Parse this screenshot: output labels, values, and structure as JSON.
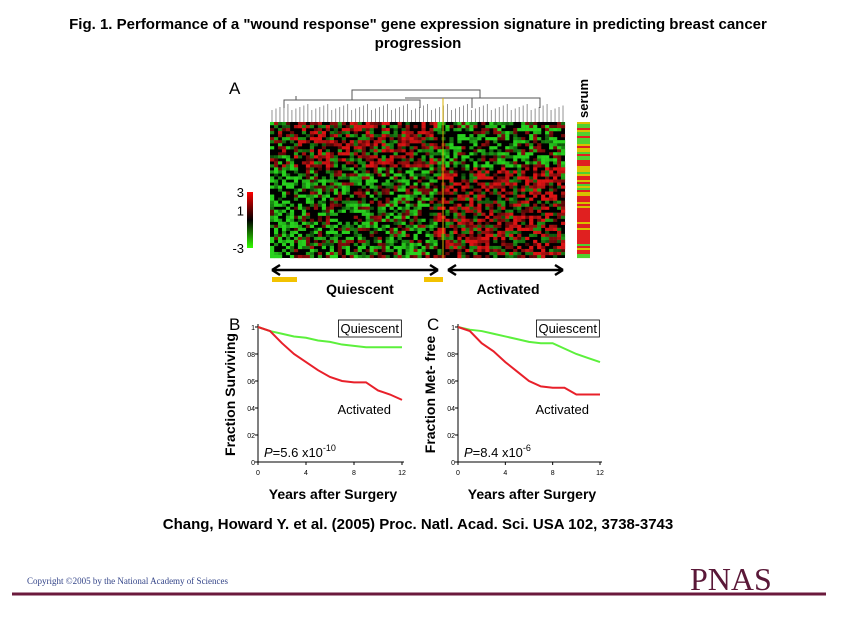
{
  "title": "Fig. 1. Performance of a \"wound response\" gene expression signature in predicting breast cancer progression",
  "panel_a": {
    "label": "A",
    "side_label": "serum",
    "color_scale_ticks": [
      3,
      1,
      -3
    ],
    "group_labels": [
      "Quiescent",
      "Activated"
    ]
  },
  "chart_data": [
    {
      "type": "line",
      "panel_label": "B",
      "ylabel": "Fraction Surviving",
      "xlabel": "Years after Surgery",
      "x": [
        0,
        1,
        2,
        3,
        4,
        5,
        6,
        7,
        8,
        9,
        10,
        11,
        12
      ],
      "series": [
        {
          "name": "Quiescent",
          "color": "#5cf03c",
          "values": [
            1,
            0.97,
            0.95,
            0.93,
            0.92,
            0.9,
            0.89,
            0.87,
            0.86,
            0.85,
            0.85,
            0.85,
            0.85
          ]
        },
        {
          "name": "Activated",
          "color": "#e8202a",
          "values": [
            1,
            0.97,
            0.88,
            0.8,
            0.74,
            0.68,
            0.63,
            0.6,
            0.59,
            0.59,
            0.53,
            0.5,
            0.46
          ]
        }
      ],
      "xlim": [
        0,
        12
      ],
      "ylim": [
        0,
        1
      ],
      "xticks": [
        0,
        4,
        8,
        12
      ],
      "yticks": [
        0,
        {
          "value": 0.2,
          "label": "02"
        },
        {
          "value": 0.4,
          "label": "04"
        },
        {
          "value": 0.6,
          "label": "06"
        },
        {
          "value": 0.8,
          "label": "08"
        },
        1
      ],
      "annotation": {
        "italic": "P",
        "text": "=5.6 x10",
        "superscript": "-10"
      }
    },
    {
      "type": "line",
      "panel_label": "C",
      "ylabel": "Fraction Met- free",
      "xlabel": "Years after Surgery",
      "x": [
        0,
        1,
        2,
        3,
        4,
        5,
        6,
        7,
        8,
        9,
        10,
        11,
        12
      ],
      "series": [
        {
          "name": "Quiescent",
          "color": "#5cf03c",
          "values": [
            1,
            0.98,
            0.97,
            0.95,
            0.93,
            0.91,
            0.89,
            0.88,
            0.88,
            0.84,
            0.8,
            0.77,
            0.74
          ]
        },
        {
          "name": "Activated",
          "color": "#e8202a",
          "values": [
            1,
            0.97,
            0.88,
            0.82,
            0.74,
            0.67,
            0.6,
            0.56,
            0.55,
            0.55,
            0.5,
            0.5,
            0.5
          ]
        }
      ],
      "xlim": [
        0,
        12
      ],
      "ylim": [
        0,
        1
      ],
      "xticks": [
        0,
        4,
        8,
        12
      ],
      "yticks": [
        0,
        {
          "value": 0.2,
          "label": "02"
        },
        {
          "value": 0.4,
          "label": "04"
        },
        {
          "value": 0.6,
          "label": "06"
        },
        {
          "value": 0.8,
          "label": "08"
        },
        1
      ],
      "annotation": {
        "italic": "P",
        "text": "=8.4 x10",
        "superscript": "-6"
      }
    }
  ],
  "citation": "Chang, Howard Y. et al. (2005) Proc. Natl. Acad. Sci. USA 102, 3738-3743",
  "copyright": "Copyright ©2005 by the National Academy of Sciences",
  "logo": "PNAS"
}
